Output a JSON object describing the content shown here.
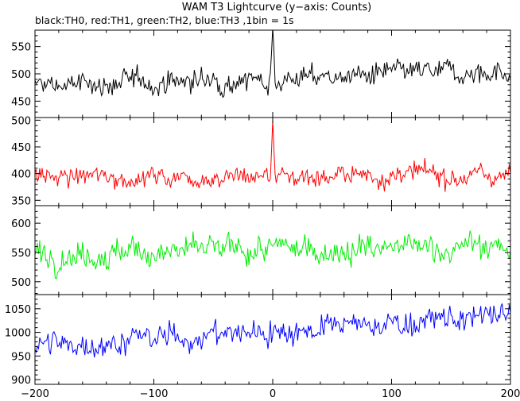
{
  "chart_data": {
    "type": "line",
    "title": "WAM T3 Lightcurve (y−axis: Counts)",
    "subtitle": "black:TH0, red:TH1, green:TH2, blue:TH3 ,1bin = 1s",
    "xlim": [
      -200,
      200
    ],
    "xticks": [
      -200,
      -100,
      0,
      100,
      200
    ],
    "x_binning_seconds": 1,
    "panels": [
      {
        "series": "TH0",
        "color": "#000000",
        "ylim": [
          420,
          580
        ],
        "yticks": [
          450,
          500,
          550
        ],
        "baseline_start": 478,
        "baseline_end": 505,
        "noise_amplitude": 20,
        "peak": {
          "x": 0,
          "y": 585
        }
      },
      {
        "series": "TH1",
        "color": "#ff0000",
        "ylim": [
          340,
          505
        ],
        "yticks": [
          350,
          400,
          450,
          500
        ],
        "baseline_start": 393,
        "baseline_end": 398,
        "noise_amplitude": 18,
        "peak": {
          "x": 0,
          "y": 500
        }
      },
      {
        "series": "TH2",
        "color": "#00ee00",
        "ylim": [
          478,
          630
        ],
        "yticks": [
          500,
          550,
          600
        ],
        "baseline_start": 548,
        "baseline_end": 560,
        "noise_amplitude": 22,
        "peak": null
      },
      {
        "series": "TH3",
        "color": "#0000ff",
        "ylim": [
          890,
          1080
        ],
        "yticks": [
          900,
          950,
          1000,
          1050
        ],
        "baseline_start": 970,
        "baseline_end": 1035,
        "noise_amplitude": 26,
        "peak": null
      }
    ]
  }
}
